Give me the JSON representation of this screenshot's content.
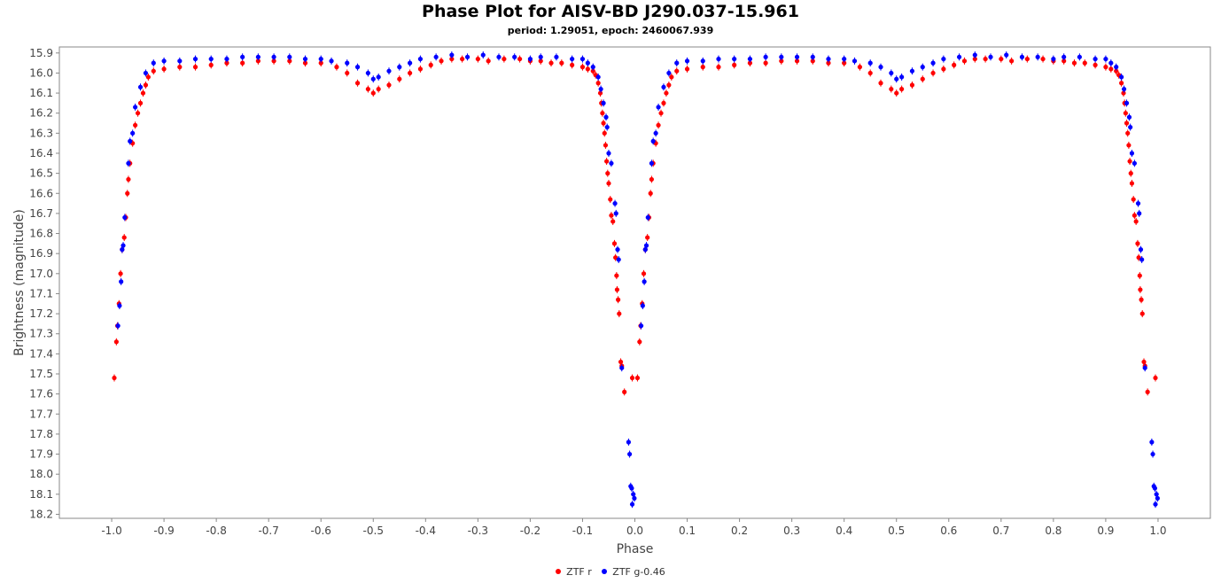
{
  "chart_data": {
    "type": "scatter",
    "title": "Phase Plot for AISV-BD J290.037-15.961",
    "subtitle": "period: 1.29051, epoch: 2460067.939",
    "xlabel": "Phase",
    "ylabel": "Brightness (magnitude)",
    "xlim": [
      -1.1,
      1.1
    ],
    "ylim": [
      18.22,
      15.87
    ],
    "y_inverted": true,
    "x_ticks": [
      "-1.0",
      "-0.9",
      "-0.8",
      "-0.7",
      "-0.6",
      "-0.5",
      "-0.4",
      "-0.3",
      "-0.2",
      "-0.1",
      "0.0",
      "0.1",
      "0.2",
      "0.3",
      "0.4",
      "0.5",
      "0.6",
      "0.7",
      "0.8",
      "0.9",
      "1.0"
    ],
    "y_ticks": [
      "15.9",
      "16.0",
      "16.1",
      "16.2",
      "16.3",
      "16.4",
      "16.5",
      "16.6",
      "16.7",
      "16.8",
      "16.9",
      "17.0",
      "17.1",
      "17.2",
      "17.3",
      "17.4",
      "17.5",
      "17.6",
      "17.7",
      "17.8",
      "17.9",
      "18.0",
      "18.1",
      "18.2"
    ],
    "grid": false,
    "legend_position": "bottom-center",
    "phase_repeat": [
      -1,
      0
    ],
    "series": [
      {
        "name": "ZTF r",
        "color": "#ff0000",
        "points": [
          [
            -0.005,
            17.52
          ],
          [
            -0.02,
            17.59
          ],
          [
            -0.025,
            17.46
          ],
          [
            -0.027,
            17.44
          ],
          [
            -0.03,
            17.2
          ],
          [
            -0.032,
            17.13
          ],
          [
            -0.034,
            17.08
          ],
          [
            -0.035,
            17.01
          ],
          [
            -0.037,
            16.92
          ],
          [
            -0.039,
            16.85
          ],
          [
            -0.042,
            16.74
          ],
          [
            -0.045,
            16.71
          ],
          [
            -0.047,
            16.63
          ],
          [
            -0.05,
            16.55
          ],
          [
            -0.052,
            16.5
          ],
          [
            -0.054,
            16.44
          ],
          [
            -0.056,
            16.36
          ],
          [
            -0.058,
            16.3
          ],
          [
            -0.06,
            16.25
          ],
          [
            -0.062,
            16.2
          ],
          [
            -0.064,
            16.15
          ],
          [
            -0.066,
            16.1
          ],
          [
            -0.07,
            16.05
          ],
          [
            -0.075,
            16.01
          ],
          [
            -0.08,
            15.99
          ],
          [
            -0.09,
            15.98
          ],
          [
            -0.1,
            15.97
          ],
          [
            -0.12,
            15.96
          ],
          [
            -0.14,
            15.95
          ],
          [
            -0.16,
            15.95
          ],
          [
            -0.18,
            15.94
          ],
          [
            -0.2,
            15.94
          ],
          [
            -0.22,
            15.93
          ],
          [
            -0.25,
            15.93
          ],
          [
            -0.28,
            15.94
          ],
          [
            -0.3,
            15.93
          ],
          [
            -0.33,
            15.93
          ],
          [
            -0.35,
            15.93
          ],
          [
            -0.37,
            15.94
          ],
          [
            -0.39,
            15.96
          ],
          [
            -0.41,
            15.98
          ],
          [
            -0.43,
            16.0
          ],
          [
            -0.45,
            16.03
          ],
          [
            -0.47,
            16.06
          ],
          [
            -0.49,
            16.08
          ],
          [
            -0.5,
            16.1
          ],
          [
            -0.51,
            16.08
          ],
          [
            -0.53,
            16.05
          ],
          [
            -0.55,
            16.0
          ],
          [
            -0.57,
            15.97
          ],
          [
            -0.6,
            15.95
          ],
          [
            -0.63,
            15.95
          ],
          [
            -0.66,
            15.94
          ],
          [
            -0.69,
            15.94
          ],
          [
            -0.72,
            15.94
          ],
          [
            -0.75,
            15.95
          ],
          [
            -0.78,
            15.95
          ],
          [
            -0.81,
            15.96
          ],
          [
            -0.84,
            15.97
          ],
          [
            -0.87,
            15.97
          ],
          [
            -0.9,
            15.98
          ],
          [
            -0.92,
            15.99
          ],
          [
            -0.93,
            16.02
          ],
          [
            -0.935,
            16.06
          ],
          [
            -0.94,
            16.1
          ],
          [
            -0.945,
            16.15
          ],
          [
            -0.95,
            16.2
          ],
          [
            -0.955,
            16.26
          ],
          [
            -0.96,
            16.35
          ],
          [
            -0.965,
            16.45
          ],
          [
            -0.968,
            16.53
          ],
          [
            -0.97,
            16.6
          ],
          [
            -0.973,
            16.72
          ],
          [
            -0.976,
            16.82
          ],
          [
            -0.98,
            16.88
          ],
          [
            -0.983,
            17.0
          ],
          [
            -0.986,
            17.15
          ],
          [
            -0.989,
            17.26
          ],
          [
            -0.991,
            17.34
          ],
          [
            -0.995,
            17.52
          ]
        ]
      },
      {
        "name": "ZTF g-0.46",
        "color": "#0000ff",
        "points": [
          [
            -0.001,
            18.12
          ],
          [
            -0.003,
            18.1
          ],
          [
            -0.005,
            18.15
          ],
          [
            -0.006,
            18.07
          ],
          [
            -0.008,
            18.06
          ],
          [
            -0.01,
            17.9
          ],
          [
            -0.012,
            17.84
          ],
          [
            -0.025,
            17.47
          ],
          [
            -0.031,
            16.93
          ],
          [
            -0.033,
            16.88
          ],
          [
            -0.036,
            16.7
          ],
          [
            -0.038,
            16.65
          ],
          [
            -0.045,
            16.45
          ],
          [
            -0.05,
            16.4
          ],
          [
            -0.053,
            16.27
          ],
          [
            -0.055,
            16.22
          ],
          [
            -0.06,
            16.15
          ],
          [
            -0.065,
            16.08
          ],
          [
            -0.07,
            16.02
          ],
          [
            -0.08,
            15.97
          ],
          [
            -0.09,
            15.95
          ],
          [
            -0.1,
            15.93
          ],
          [
            -0.12,
            15.93
          ],
          [
            -0.15,
            15.92
          ],
          [
            -0.18,
            15.92
          ],
          [
            -0.2,
            15.93
          ],
          [
            -0.23,
            15.92
          ],
          [
            -0.26,
            15.92
          ],
          [
            -0.29,
            15.91
          ],
          [
            -0.32,
            15.92
          ],
          [
            -0.35,
            15.91
          ],
          [
            -0.38,
            15.92
          ],
          [
            -0.41,
            15.93
          ],
          [
            -0.43,
            15.95
          ],
          [
            -0.45,
            15.97
          ],
          [
            -0.47,
            15.99
          ],
          [
            -0.49,
            16.02
          ],
          [
            -0.5,
            16.03
          ],
          [
            -0.51,
            16.0
          ],
          [
            -0.53,
            15.97
          ],
          [
            -0.55,
            15.95
          ],
          [
            -0.58,
            15.94
          ],
          [
            -0.6,
            15.93
          ],
          [
            -0.63,
            15.93
          ],
          [
            -0.66,
            15.92
          ],
          [
            -0.69,
            15.92
          ],
          [
            -0.72,
            15.92
          ],
          [
            -0.75,
            15.92
          ],
          [
            -0.78,
            15.93
          ],
          [
            -0.81,
            15.93
          ],
          [
            -0.84,
            15.93
          ],
          [
            -0.87,
            15.94
          ],
          [
            -0.9,
            15.94
          ],
          [
            -0.92,
            15.95
          ],
          [
            -0.935,
            16.0
          ],
          [
            -0.945,
            16.07
          ],
          [
            -0.955,
            16.17
          ],
          [
            -0.96,
            16.3
          ],
          [
            -0.965,
            16.34
          ],
          [
            -0.968,
            16.45
          ],
          [
            -0.975,
            16.72
          ],
          [
            -0.978,
            16.86
          ],
          [
            -0.98,
            16.88
          ],
          [
            -0.982,
            17.04
          ],
          [
            -0.985,
            17.16
          ],
          [
            -0.988,
            17.26
          ]
        ]
      }
    ]
  },
  "legend": {
    "items": [
      {
        "label": "ZTF r",
        "color": "#ff0000"
      },
      {
        "label": "ZTF g-0.46",
        "color": "#0000ff"
      }
    ]
  }
}
